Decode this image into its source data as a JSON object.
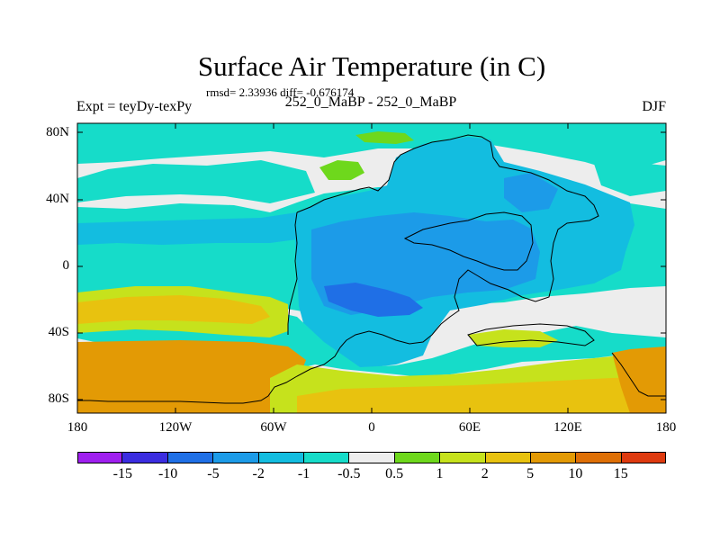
{
  "title": "Surface Air Temperature (in C)",
  "stats_text": "rmsd= 2.33936 diff= -0.676174",
  "left_label": "Expt = teyDy-texPy",
  "center_label": "252_0_MaBP - 252_0_MaBP",
  "right_label": "DJF",
  "map": {
    "lat_ticks": [
      "80N",
      "40N",
      "0",
      "40S",
      "80S"
    ],
    "lon_ticks": [
      "180",
      "120W",
      "60W",
      "0",
      "60E",
      "120E",
      "180"
    ]
  },
  "colorbar": {
    "colors": [
      "#9f1fef",
      "#3b2de0",
      "#1f6fe6",
      "#1c9be8",
      "#13bde0",
      "#16dcc9",
      "#ededed",
      "#6ed81c",
      "#c6e21c",
      "#e8c20f",
      "#e39a05",
      "#de6f06",
      "#de3a0f"
    ],
    "labels": [
      "-15",
      "-10",
      "-5",
      "-2",
      "-1",
      "-0.5",
      "0.5",
      "1",
      "2",
      "5",
      "10",
      "15"
    ]
  }
}
